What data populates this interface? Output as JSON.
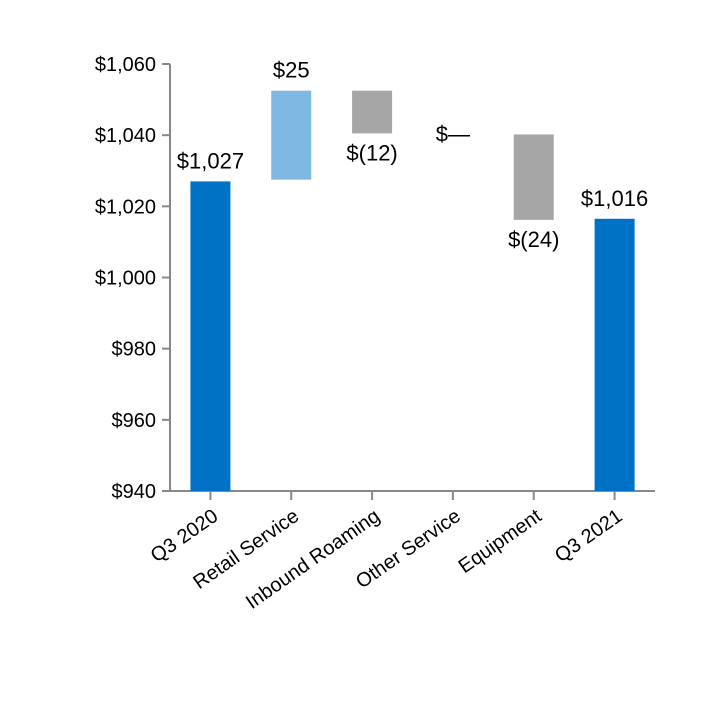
{
  "chart_data": {
    "type": "waterfall",
    "title": "",
    "xlabel": "",
    "ylabel": "",
    "ylim": [
      940,
      1060
    ],
    "yticks": [
      940,
      960,
      980,
      1000,
      1020,
      1040,
      1060
    ],
    "ytick_labels": [
      "$940",
      "$960",
      "$980",
      "$1,000",
      "$1,020",
      "$1,040",
      "$1,060"
    ],
    "grid": false,
    "legend": "none",
    "categories": [
      "Q3 2020",
      "Retail Service",
      "Inbound Roaming",
      "Other Service",
      "Equipment",
      "Q3 2021"
    ],
    "bars": [
      {
        "category": "Q3 2020",
        "kind": "total",
        "start": 940,
        "end": 1027,
        "label": "$1,027",
        "color": "#0072c6"
      },
      {
        "category": "Retail Service",
        "kind": "increase",
        "start": 1027.5,
        "end": 1052.5,
        "label": "$25",
        "color": "#7fb8e2"
      },
      {
        "category": "Inbound Roaming",
        "kind": "decrease",
        "start": 1052.5,
        "end": 1040.5,
        "label": "$(12)",
        "color": "#a6a6a6"
      },
      {
        "category": "Other Service",
        "kind": "zero",
        "start": 1040.5,
        "end": 1040.5,
        "label": "$—",
        "color": "#a6a6a6"
      },
      {
        "category": "Equipment",
        "kind": "decrease",
        "start": 1040.2,
        "end": 1016.2,
        "label": "$(24)",
        "color": "#a6a6a6"
      },
      {
        "category": "Q3 2021",
        "kind": "total",
        "start": 940,
        "end": 1016.5,
        "label": "$1,016",
        "color": "#0072c6"
      }
    ],
    "axis_color": "#888888"
  }
}
